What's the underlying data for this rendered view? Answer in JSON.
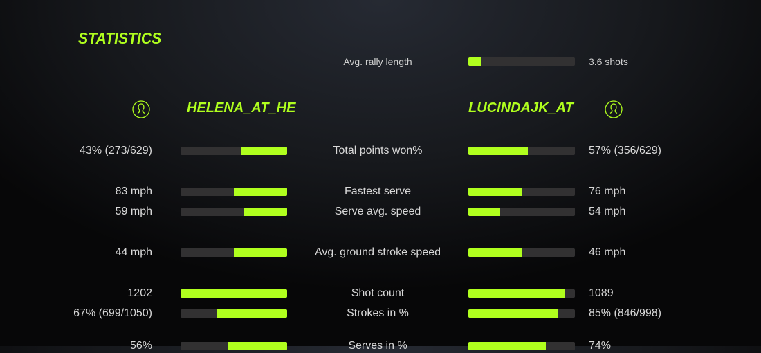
{
  "colors": {
    "accent": "#b0ff1e",
    "track": "#323132"
  },
  "title": "STATISTICS",
  "rally": {
    "label": "Avg. rally length",
    "value": "3.6 shots",
    "fill": 0.12
  },
  "players": {
    "left": {
      "name": "HELENA_AT_HE",
      "icon": "user-icon"
    },
    "right": {
      "name": "LUCINDAJK_AT",
      "icon": "user-icon"
    }
  },
  "stats": [
    {
      "label": "Total points won%",
      "left": "43% (273/629)",
      "right": "57% (356/629)",
      "left_fill": 0.43,
      "right_fill": 0.56
    },
    {
      "label": "Fastest serve",
      "left": "83 mph",
      "right": "76 mph",
      "left_fill": 0.5,
      "right_fill": 0.5
    },
    {
      "label": "Serve avg. speed",
      "left": "59 mph",
      "right": "54 mph",
      "left_fill": 0.4,
      "right_fill": 0.3
    },
    {
      "label": "Avg. ground stroke speed",
      "left": "44 mph",
      "right": "46 mph",
      "left_fill": 0.5,
      "right_fill": 0.5
    },
    {
      "label": "Shot count",
      "left": "1202",
      "right": "1089",
      "left_fill": 1.0,
      "right_fill": 0.9
    },
    {
      "label": "Strokes in %",
      "left": "67% (699/1050)",
      "right": "85% (846/998)",
      "left_fill": 0.66,
      "right_fill": 0.84
    },
    {
      "label": "Serves in %",
      "left": "56%",
      "right": "74%",
      "left_fill": 0.55,
      "right_fill": 0.73
    }
  ]
}
